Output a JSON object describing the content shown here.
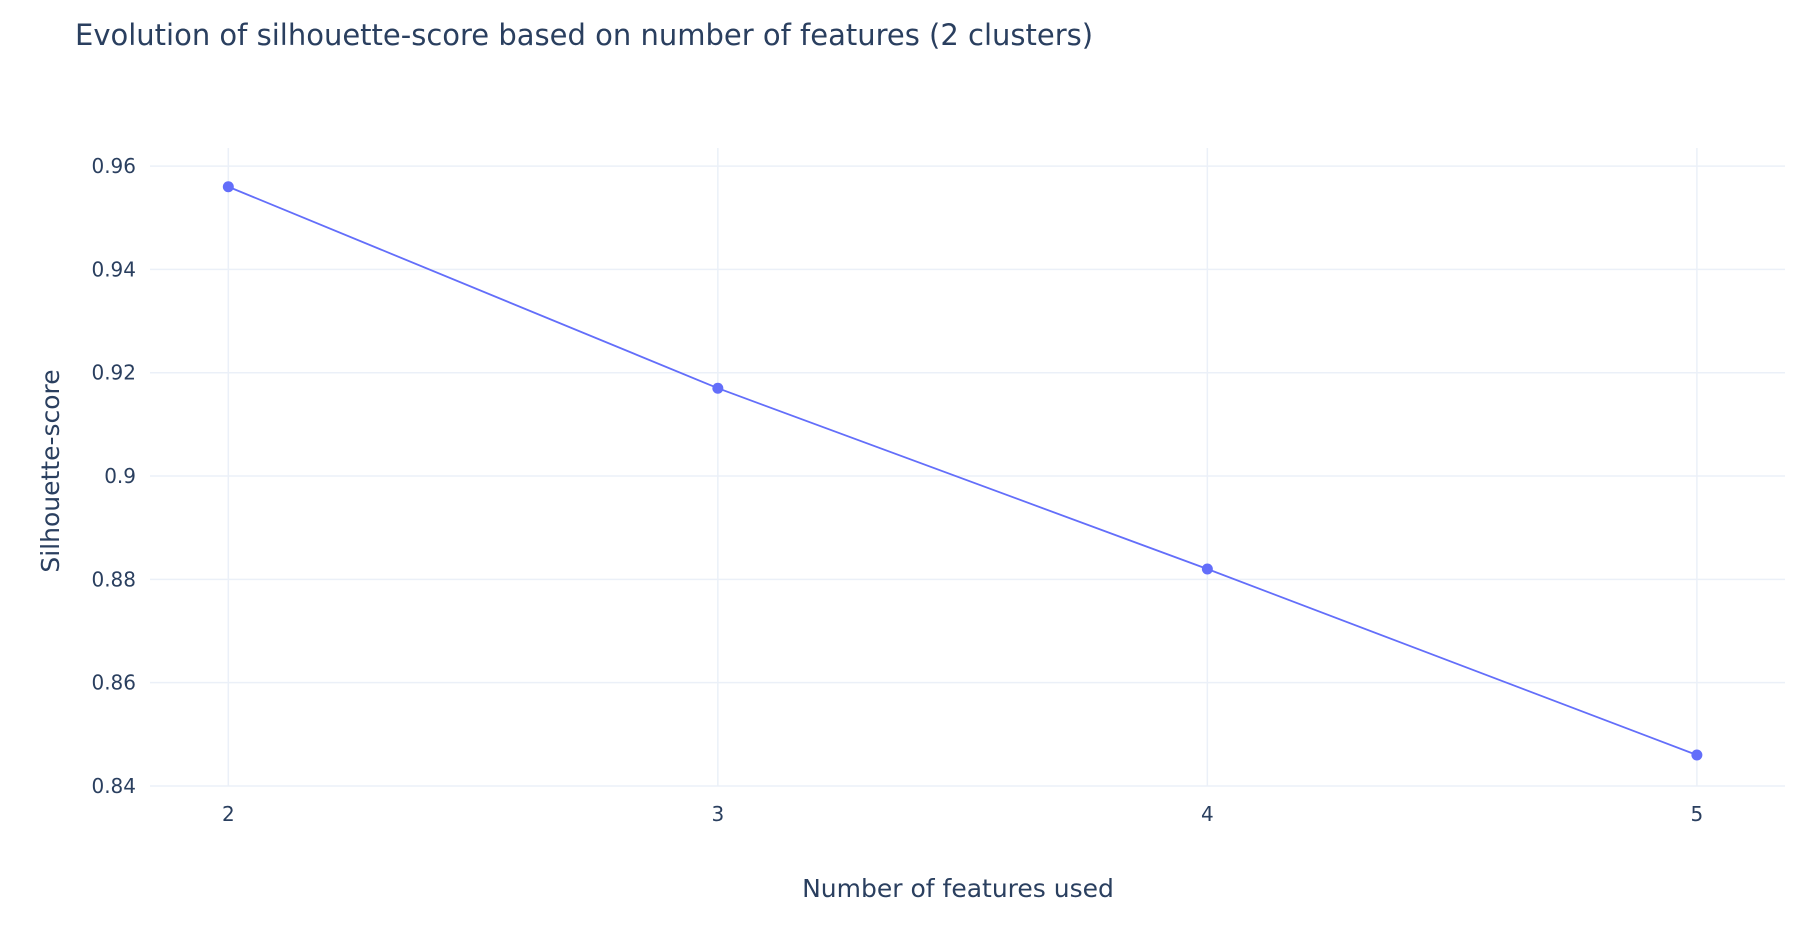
{
  "chart_data": {
    "type": "line",
    "title": "Evolution of silhouette-score based on number of features (2 clusters)",
    "xlabel": "Number of features used",
    "ylabel": "Silhouette-score",
    "x": [
      2,
      3,
      4,
      5
    ],
    "y": [
      0.956,
      0.917,
      0.882,
      0.846
    ],
    "xlim": [
      1.84,
      5.18
    ],
    "ylim": [
      0.84,
      0.9635
    ],
    "x_ticks": [
      2,
      3,
      4,
      5
    ],
    "x_tick_labels": [
      "2",
      "3",
      "4",
      "5"
    ],
    "y_ticks": [
      0.84,
      0.86,
      0.88,
      0.9,
      0.92,
      0.94,
      0.96
    ],
    "y_tick_labels": [
      "0.84",
      "0.86",
      "0.88",
      "0.9",
      "0.92",
      "0.94",
      "0.96"
    ],
    "grid": true,
    "legend": false,
    "colors": {
      "line": "#636efa",
      "grid": "#ebf0f8",
      "text": "#2a3f5f",
      "background": "#ffffff"
    }
  }
}
